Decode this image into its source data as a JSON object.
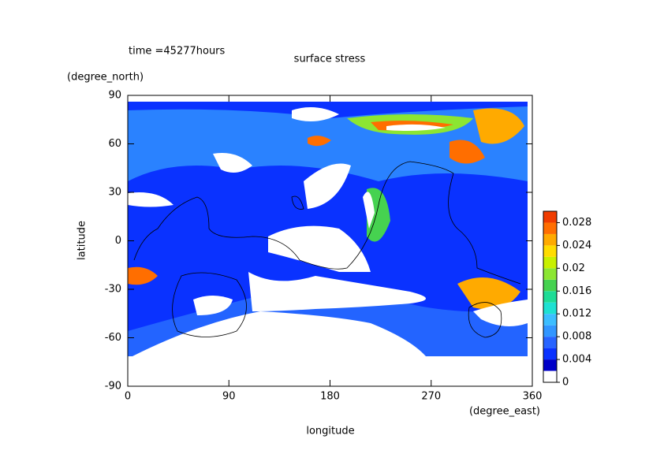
{
  "chart_data": {
    "type": "contour",
    "title": "surface stress",
    "subtitle": "time =45277hours",
    "x_label": "longitude",
    "y_label": "latitude",
    "x_unit": "(degree_east)",
    "y_unit": "(degree_north)",
    "xlim": [
      0,
      360
    ],
    "ylim": [
      -90,
      90
    ],
    "xticks": [
      0,
      90,
      180,
      270,
      360
    ],
    "yticks": [
      90,
      60,
      30,
      0,
      -30,
      -60,
      -90
    ],
    "colorbar": {
      "lim": [
        0,
        0.03
      ],
      "levels": [
        0,
        0.002,
        0.004,
        0.006,
        0.008,
        0.01,
        0.012,
        0.014,
        0.016,
        0.018,
        0.02,
        0.022,
        0.024,
        0.026,
        0.028
      ],
      "colors": [
        "#ffffff",
        "#0000c8",
        "#0a32ff",
        "#2864ff",
        "#3296ff",
        "#3cbeff",
        "#1ee1d2",
        "#1edc96",
        "#46d250",
        "#8ce632",
        "#c8f000",
        "#ffdc00",
        "#ffaa00",
        "#ff6e00",
        "#f03c00"
      ],
      "ticks": [
        0,
        0.004,
        0.008,
        0.012,
        0.016,
        0.02,
        0.024,
        0.028
      ]
    }
  }
}
